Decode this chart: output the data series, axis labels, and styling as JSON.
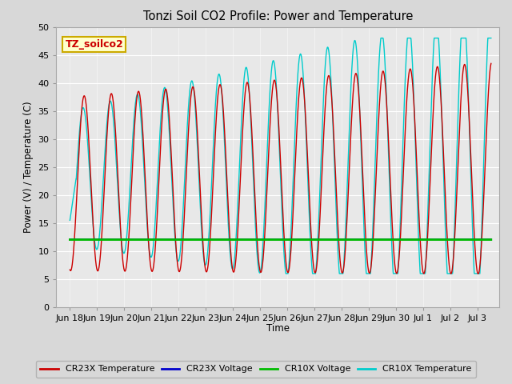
{
  "title": "Tonzi Soil CO2 Profile: Power and Temperature",
  "xlabel": "Time",
  "ylabel": "Power (V) / Temperature (C)",
  "ylim": [
    0,
    50
  ],
  "yticks": [
    0,
    5,
    10,
    15,
    20,
    25,
    30,
    35,
    40,
    45,
    50
  ],
  "fig_bg_color": "#d8d8d8",
  "plot_bg_color": "#e8e8e8",
  "annotation_text": "TZ_soilco2",
  "annotation_bg": "#ffffcc",
  "annotation_border": "#ccaa00",
  "legend_entries": [
    "CR23X Temperature",
    "CR23X Voltage",
    "CR10X Voltage",
    "CR10X Temperature"
  ],
  "cr23x_temp_color": "#cc0000",
  "cr23x_volt_color": "#0000cc",
  "cr10x_volt_color": "#00bb00",
  "cr10x_temp_color": "#00cccc",
  "voltage_value": 12.0,
  "tick_labels": [
    "Jun 18",
    "Jun 19",
    "Jun 20",
    "Jun 21",
    "Jun 22",
    "Jun 23",
    "Jun 24",
    "Jun 25",
    "Jun 26",
    "Jun 27",
    "Jun 28",
    "Jun 29",
    "Jun 30",
    "Jul 1",
    "Jul 2",
    "Jul 3"
  ]
}
